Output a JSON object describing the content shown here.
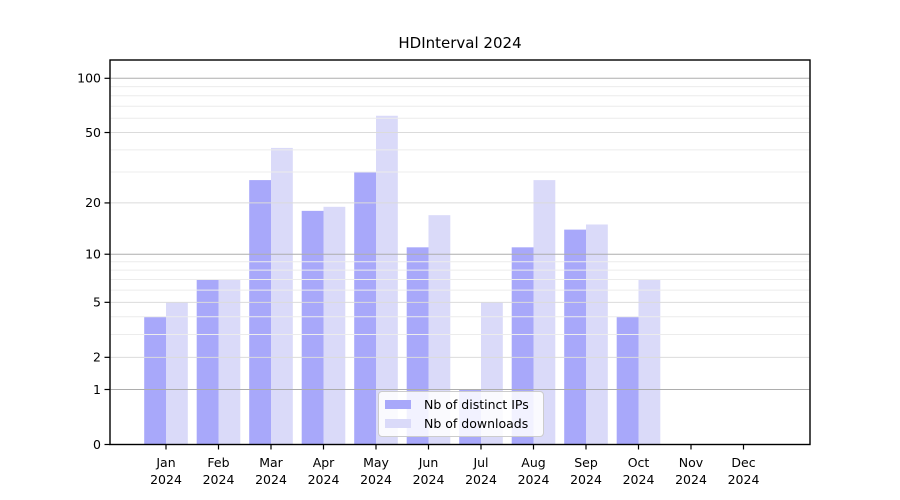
{
  "chart_data": {
    "type": "bar",
    "title": "HDInterval 2024",
    "x_year_label": "2024",
    "categories": [
      "Jan",
      "Feb",
      "Mar",
      "Apr",
      "May",
      "Jun",
      "Jul",
      "Aug",
      "Sep",
      "Oct",
      "Nov",
      "Dec"
    ],
    "series": [
      {
        "name": "Nb of distinct IPs",
        "color": "#a8a8fa",
        "values": [
          4,
          7,
          27,
          18,
          30,
          11,
          1,
          11,
          14,
          4,
          0,
          0
        ]
      },
      {
        "name": "Nb of downloads",
        "color": "#dadaf9",
        "values": [
          5,
          7,
          41,
          19,
          62,
          17,
          5,
          27,
          15,
          7,
          0,
          0
        ]
      }
    ],
    "y_axis": {
      "scale": "log1p",
      "ticks": [
        0,
        1,
        2,
        5,
        10,
        20,
        50,
        100
      ],
      "minor_ticks": [
        3,
        4,
        6,
        7,
        8,
        9,
        30,
        40,
        60,
        70,
        80,
        90
      ],
      "max": 126
    },
    "legend": {
      "position": "lower center",
      "entries": [
        "Nb of distinct IPs",
        "Nb of downloads"
      ]
    },
    "grid": true
  },
  "colors": {
    "major_grid": "#adadad",
    "tick_grid": "#dbdbdb",
    "minor_grid": "#ececec",
    "spine": "#000000",
    "text": "#000000"
  }
}
